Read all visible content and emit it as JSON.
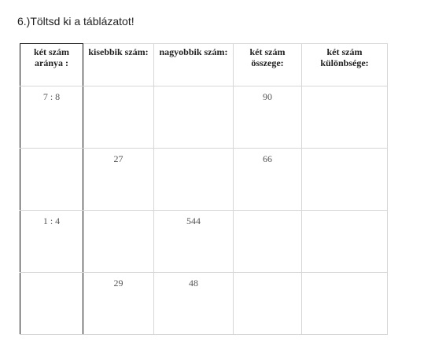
{
  "title": "6.)Töltsd ki a táblázatot!",
  "table": {
    "header": [
      "két szám aránya :",
      "kisebbik szám:",
      "nagyobbik szám:",
      "két szám összege:",
      "két szám különbsége:"
    ],
    "rows": [
      [
        "7 : 8",
        null,
        null,
        "90",
        null
      ],
      [
        null,
        "27",
        null,
        "66",
        null
      ],
      [
        "1 : 4",
        null,
        "544",
        null,
        null
      ],
      [
        null,
        "29",
        "48",
        null,
        null
      ]
    ]
  }
}
